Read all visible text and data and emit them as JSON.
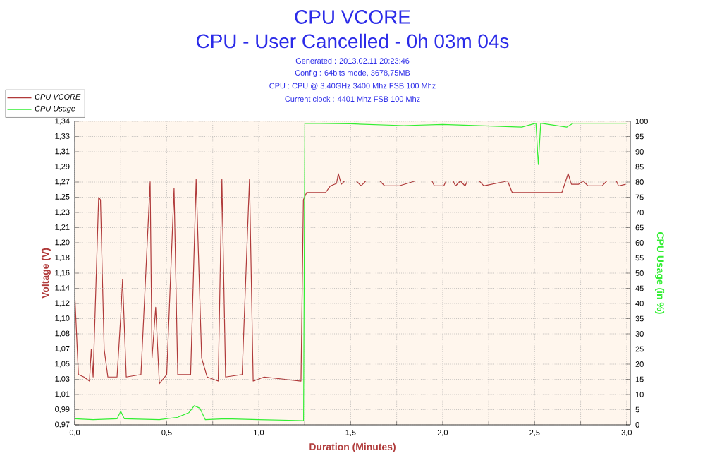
{
  "chart_data": {
    "type": "line",
    "title": "CPU VCORE",
    "subtitle": "CPU - User Cancelled - 0h 03m 04s",
    "annotations": [
      "Generated : 2013.02.11 20:23:46",
      "Config : 64bits mode, 3678,75MB",
      "CPU : CPU @ 3.40GHz 3400 Mhz FSB 100 Mhz",
      "Current clock : 4401 Mhz FSB 100 Mhz"
    ],
    "xlabel": "Duration (Minutes)",
    "ylabel": "Voltage (V)",
    "y2label": "CPU Usage (in %)",
    "xlim": [
      0,
      3.02
    ],
    "ylim": [
      0.9737,
      1.3437
    ],
    "y2lim": [
      0,
      100
    ],
    "xticks": [
      {
        "value": 0,
        "label": "0,0"
      },
      {
        "value": 0.25,
        "label": null
      },
      {
        "value": 0.5,
        "label": "0,5"
      },
      {
        "value": 0.75,
        "label": null
      },
      {
        "value": 1,
        "label": "1,0"
      },
      {
        "value": 1.25,
        "label": null
      },
      {
        "value": 1.5,
        "label": "1,5"
      },
      {
        "value": 1.75,
        "label": null
      },
      {
        "value": 2,
        "label": "2,0"
      },
      {
        "value": 2.25,
        "label": null
      },
      {
        "value": 2.5,
        "label": "2,5"
      },
      {
        "value": 2.75,
        "label": null
      },
      {
        "value": 3,
        "label": "3,0"
      }
    ],
    "yticks": [
      {
        "value": 0.9737,
        "label": "0,97"
      },
      {
        "value": 0.9922,
        "label": "0,99"
      },
      {
        "value": 1.0107,
        "label": "1,01"
      },
      {
        "value": 1.0292,
        "label": "1,03"
      },
      {
        "value": 1.0477,
        "label": "1,05"
      },
      {
        "value": 1.0662,
        "label": "1,07"
      },
      {
        "value": 1.0847,
        "label": "1,08"
      },
      {
        "value": 1.1032,
        "label": "1,10"
      },
      {
        "value": 1.1217,
        "label": "1,12"
      },
      {
        "value": 1.1402,
        "label": "1,14"
      },
      {
        "value": 1.1587,
        "label": "1,16"
      },
      {
        "value": 1.1772,
        "label": "1,18"
      },
      {
        "value": 1.1957,
        "label": "1,20"
      },
      {
        "value": 1.2142,
        "label": "1,21"
      },
      {
        "value": 1.2327,
        "label": "1,23"
      },
      {
        "value": 1.2512,
        "label": "1,25"
      },
      {
        "value": 1.2697,
        "label": "1,27"
      },
      {
        "value": 1.2882,
        "label": "1,29"
      },
      {
        "value": 1.3067,
        "label": "1,31"
      },
      {
        "value": 1.3252,
        "label": "1,33"
      },
      {
        "value": 1.3437,
        "label": "1,34"
      }
    ],
    "y2ticks": [
      0,
      5,
      10,
      15,
      20,
      25,
      30,
      35,
      40,
      45,
      50,
      55,
      60,
      65,
      70,
      75,
      80,
      85,
      90,
      95,
      100
    ],
    "grid": true,
    "legend": "top left",
    "series": [
      {
        "name": "CPU VCORE",
        "color": "#b03a3a",
        "x": [
          0,
          0.02,
          0.05,
          0.08,
          0.09,
          0.1,
          0.13,
          0.14,
          0.16,
          0.18,
          0.23,
          0.25,
          0.26,
          0.28,
          0.36,
          0.41,
          0.42,
          0.44,
          0.46,
          0.5,
          0.54,
          0.56,
          0.63,
          0.66,
          0.69,
          0.72,
          0.78,
          0.8,
          0.82,
          0.91,
          0.95,
          0.97,
          1.03,
          1.23,
          1.243,
          1.261,
          1.364,
          1.39,
          1.423,
          1.433,
          1.449,
          1.467,
          1.531,
          1.557,
          1.582,
          1.659,
          1.685,
          1.762,
          1.852,
          1.942,
          1.955,
          2.006,
          2.019,
          2.057,
          2.07,
          2.096,
          2.122,
          2.134,
          2.199,
          2.224,
          2.353,
          2.378,
          2.648,
          2.682,
          2.7,
          2.738,
          2.764,
          2.79,
          2.867,
          2.892,
          2.944,
          2.956,
          2.995
        ],
        "values": [
          1.134,
          1.035,
          1.032,
          1.027,
          1.066,
          1.032,
          1.251,
          1.248,
          1.066,
          1.032,
          1.032,
          1.106,
          1.151,
          1.032,
          1.035,
          1.27,
          1.055,
          1.117,
          1.024,
          1.035,
          1.262,
          1.035,
          1.035,
          1.273,
          1.055,
          1.032,
          1.027,
          1.273,
          1.032,
          1.035,
          1.273,
          1.027,
          1.032,
          1.027,
          1.248,
          1.257,
          1.257,
          1.265,
          1.268,
          1.28,
          1.267,
          1.271,
          1.271,
          1.265,
          1.271,
          1.271,
          1.265,
          1.265,
          1.271,
          1.271,
          1.265,
          1.265,
          1.271,
          1.271,
          1.265,
          1.271,
          1.265,
          1.271,
          1.271,
          1.265,
          1.271,
          1.257,
          1.257,
          1.28,
          1.267,
          1.267,
          1.271,
          1.265,
          1.265,
          1.271,
          1.271,
          1.265,
          1.267
        ]
      },
      {
        "name": "CPU Usage",
        "color": "#33ee33",
        "axis": "y2",
        "x": [
          0,
          0.1,
          0.23,
          0.25,
          0.27,
          0.46,
          0.56,
          0.62,
          0.65,
          0.68,
          0.71,
          0.82,
          1.0,
          1.244,
          1.251,
          1.5,
          1.788,
          2.0,
          2.43,
          2.507,
          2.52,
          2.533,
          2.674,
          2.71,
          3.0
        ],
        "values": [
          2,
          1.7,
          2,
          4.5,
          2,
          1.7,
          2.5,
          4,
          6.3,
          5.5,
          1.7,
          2,
          1.7,
          1.4,
          99.4,
          99.2,
          98.6,
          99,
          98.1,
          99.4,
          85.8,
          99.4,
          98.1,
          99.4,
          99.4
        ]
      }
    ]
  }
}
